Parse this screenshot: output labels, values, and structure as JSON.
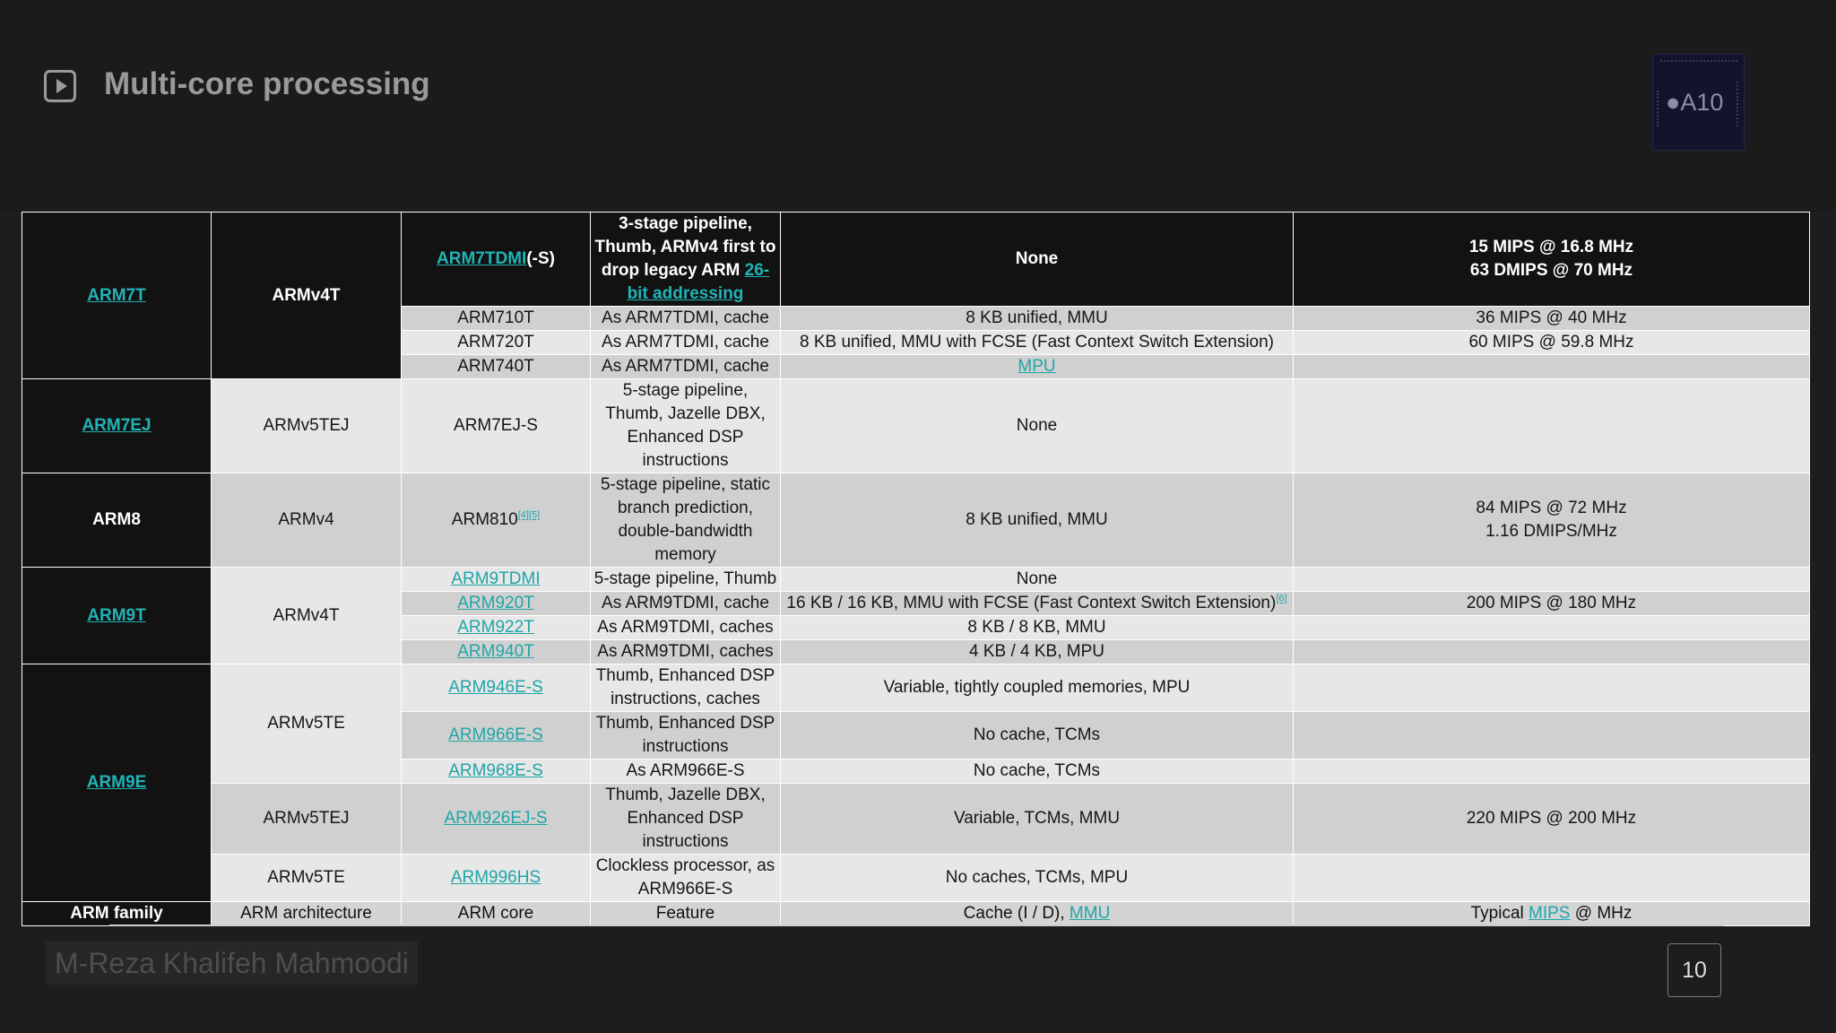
{
  "slide": {
    "title": "Multi-core processing",
    "author": "M-Reza Khalifeh Mahmoodi",
    "page_number": "10",
    "chip_label": "A10",
    "icons": {
      "play": "play-button-icon",
      "chip": "apple-a10-chip-image"
    },
    "colors": {
      "background": "#1d1d1f",
      "link": "#1fa5a8"
    }
  },
  "table": {
    "arm7t": {
      "family": "ARM7T",
      "arch": "ARMv4T",
      "head": {
        "core_link": "ARM7TDMI",
        "core_suffix": "(-S)",
        "feature_text": "3-stage pipeline, Thumb, ARMv4 first to drop legacy ARM ",
        "feature_link": "26-bit addressing",
        "cache": "None",
        "mips_1": "15 MIPS @ 16.8 MHz",
        "mips_2": "63 DMIPS @ 70 MHz"
      },
      "rows": [
        {
          "core": "ARM710T",
          "feature": "As ARM7TDMI, cache",
          "cache": "8 KB unified, MMU",
          "mips": "36 MIPS @ 40 MHz"
        },
        {
          "core": "ARM720T",
          "feature": "As ARM7TDMI, cache",
          "cache": "8 KB unified, MMU with FCSE (Fast Context Switch Extension)",
          "mips": "60 MIPS @ 59.8 MHz"
        },
        {
          "core": "ARM740T",
          "feature": "As ARM7TDMI, cache",
          "cache_link": "MPU",
          "mips": ""
        }
      ]
    },
    "arm7ej": {
      "family": "ARM7EJ",
      "arch": "ARMv5TEJ",
      "core": "ARM7EJ-S",
      "feature": "5-stage pipeline, Thumb, Jazelle DBX, Enhanced DSP instructions",
      "cache": "None",
      "mips": ""
    },
    "arm8": {
      "family": "ARM8",
      "arch": "ARMv4",
      "core": "ARM810",
      "core_refs": "[4][5]",
      "feature": "5-stage pipeline, static branch prediction, double-bandwidth memory",
      "cache": "8 KB unified, MMU",
      "mips_1": "84 MIPS @ 72 MHz",
      "mips_2": "1.16 DMIPS/MHz"
    },
    "arm9t": {
      "family": "ARM9T",
      "arch": "ARMv4T",
      "rows": [
        {
          "core": "ARM9TDMI",
          "feature": "5-stage pipeline, Thumb",
          "cache": "None",
          "mips": "",
          "ref": ""
        },
        {
          "core": "ARM920T",
          "feature": "As ARM9TDMI, cache",
          "cache": "16 KB / 16 KB, MMU with FCSE (Fast Context Switch Extension)",
          "mips": "200 MIPS @ 180 MHz",
          "ref": "[6]"
        },
        {
          "core": "ARM922T",
          "feature": "As ARM9TDMI, caches",
          "cache": "8 KB / 8 KB, MMU",
          "mips": "",
          "ref": ""
        },
        {
          "core": "ARM940T",
          "feature": "As ARM9TDMI, caches",
          "cache": "4 KB / 4 KB, MPU",
          "mips": "",
          "ref": ""
        }
      ]
    },
    "arm9e": {
      "family": "ARM9E",
      "arch_v5te": "ARMv5TE",
      "arch_v5tej": "ARMv5TEJ",
      "arch_v5te_b": "ARMv5TE",
      "rows": [
        {
          "core": "ARM946E-S",
          "feature": "Thumb, Enhanced DSP instructions, caches",
          "cache": "Variable, tightly coupled memories, MPU",
          "mips": ""
        },
        {
          "core": "ARM966E-S",
          "feature": "Thumb, Enhanced DSP instructions",
          "cache": "No cache, TCMs",
          "mips": ""
        },
        {
          "core": "ARM968E-S",
          "feature": "As ARM966E-S",
          "cache": "No cache, TCMs",
          "mips": ""
        },
        {
          "core": "ARM926EJ-S",
          "feature": "Thumb, Jazelle DBX, Enhanced DSP instructions",
          "cache": "Variable, TCMs, MMU",
          "mips": "220 MIPS @ 200 MHz"
        },
        {
          "core": "ARM996HS",
          "feature": "Clockless processor, as ARM966E-S",
          "cache": "No caches, TCMs, MPU",
          "mips": ""
        }
      ]
    },
    "footer": {
      "family": "ARM family",
      "arch": "ARM architecture",
      "core": "ARM core",
      "feature": "Feature",
      "cache_text": "Cache (I / D), ",
      "cache_link": "MMU",
      "mips_text": "Typical ",
      "mips_link": "MIPS",
      "mips_suffix": " @ MHz"
    }
  }
}
